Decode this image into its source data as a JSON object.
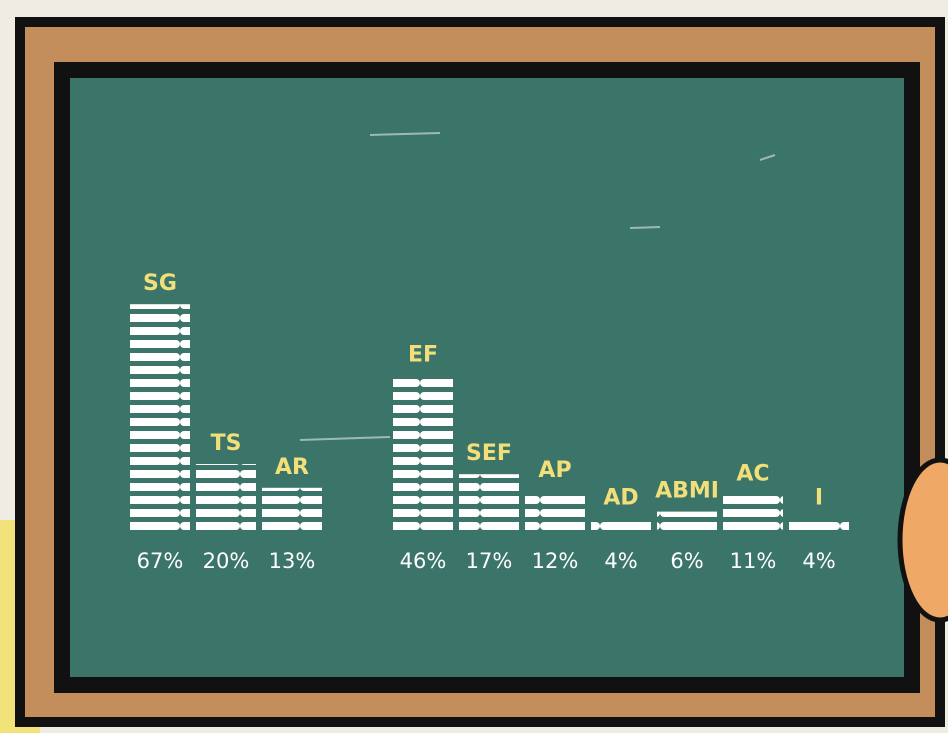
{
  "chart_data": {
    "type": "bar",
    "categories": [
      "SG",
      "TS",
      "AR",
      "EF",
      "SEF",
      "AP",
      "AD",
      "ABMI",
      "AC",
      "I"
    ],
    "values": [
      67,
      20,
      13,
      46,
      17,
      12,
      4,
      6,
      11,
      4
    ],
    "value_labels": [
      "67%",
      "20%",
      "13%",
      "46%",
      "17%",
      "12%",
      "4%",
      "6%",
      "11%",
      "4%"
    ],
    "color": "#ffffff"
  }
}
